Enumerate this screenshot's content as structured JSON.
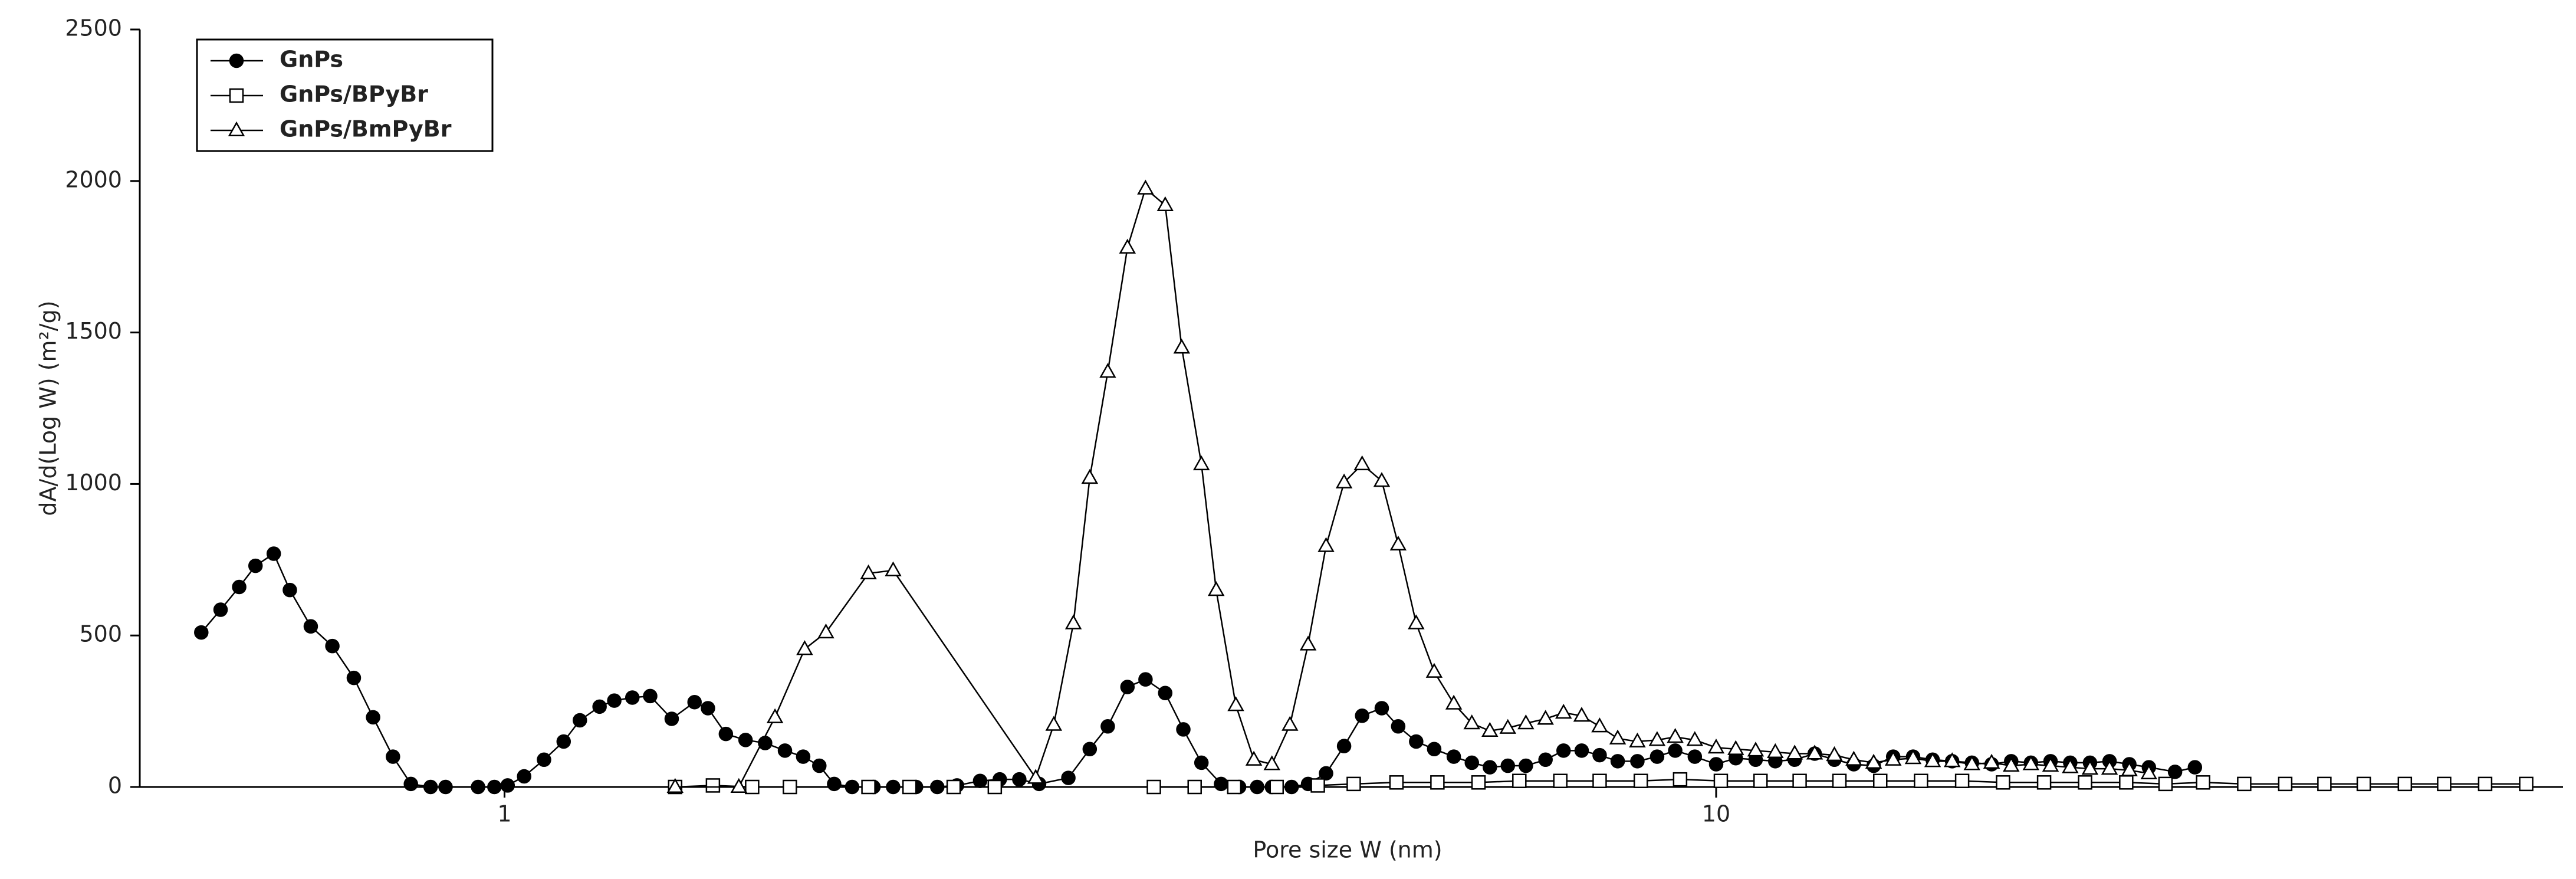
{
  "chart_data": {
    "type": "line",
    "xlabel": "Pore size W (nm)",
    "ylabel": "dA/d(Log W) (m²/g)",
    "xscale": "log",
    "xlim": [
      0.5,
      50
    ],
    "xticks": [
      1,
      10
    ],
    "ylim": [
      0,
      2500
    ],
    "yticks": [
      0,
      500,
      1000,
      1500,
      2000,
      2500
    ],
    "legend": "upper left",
    "series": [
      {
        "name": "GnPs",
        "color": "#000000",
        "marker": "circle-filled",
        "x": [
          0.562,
          0.583,
          0.604,
          0.623,
          0.645,
          0.665,
          0.692,
          0.721,
          0.751,
          0.779,
          0.809,
          0.837,
          0.869,
          0.894,
          0.951,
          0.981,
          1.006,
          1.038,
          1.078,
          1.119,
          1.154,
          1.198,
          1.232,
          1.275,
          1.319,
          1.374,
          1.435,
          1.472,
          1.523,
          1.581,
          1.641,
          1.704,
          1.764,
          1.819,
          1.871,
          1.936,
          2.016,
          2.093,
          2.186,
          2.276,
          2.363,
          2.469,
          2.563,
          2.66,
          2.762,
          2.92,
          3.041,
          3.147,
          3.267,
          3.381,
          3.51,
          3.633,
          3.76,
          3.903,
          4.039,
          4.18,
          4.299,
          4.463,
          4.605,
          4.765,
          4.931,
          5.103,
          5.297,
          5.465,
          5.655,
          5.852,
          6.074,
          6.286,
          6.505,
          6.731,
          6.966,
          7.231,
          7.483,
          7.745,
          8.014,
          8.294,
          8.61,
          8.939,
          9.252,
          9.603,
          10.0,
          10.38,
          10.78,
          11.19,
          11.61,
          12.06,
          12.52,
          12.99,
          13.49,
          14.0,
          14.54,
          15.09,
          15.66,
          16.26,
          16.88,
          17.52,
          18.19,
          18.88,
          19.6,
          20.35,
          21.12,
          21.93,
          22.76,
          23.92,
          24.84
        ],
        "values": [
          510,
          585,
          660,
          730,
          770,
          650,
          530,
          465,
          360,
          230,
          100,
          10,
          0,
          0,
          0,
          0,
          5,
          35,
          90,
          150,
          220,
          265,
          285,
          295,
          300,
          225,
          280,
          260,
          175,
          155,
          145,
          120,
          100,
          70,
          10,
          0,
          0,
          0,
          0,
          0,
          5,
          20,
          25,
          25,
          10,
          30,
          125,
          200,
          330,
          355,
          310,
          190,
          80,
          10,
          0,
          0,
          0,
          0,
          10,
          45,
          135,
          235,
          260,
          200,
          150,
          125,
          100,
          80,
          65,
          70,
          70,
          90,
          120,
          120,
          105,
          85,
          85,
          100,
          120,
          100,
          75,
          95,
          90,
          85,
          90,
          110,
          90,
          75,
          70,
          100,
          100,
          90,
          85,
          80,
          75,
          85,
          80,
          85,
          80,
          80,
          85,
          75,
          65,
          50,
          65
        ]
      },
      {
        "name": "GnPs/BPyBr",
        "color": "#000000",
        "marker": "square-open",
        "x": [
          1.383,
          1.486,
          1.601,
          1.72,
          1.997,
          2.159,
          2.348,
          2.539,
          3.435,
          3.712,
          4.002,
          4.338,
          4.691,
          5.022,
          5.447,
          5.888,
          6.366,
          6.88,
          7.437,
          8.014,
          8.666,
          9.338,
          10.09,
          10.88,
          11.72,
          12.64,
          13.66,
          14.76,
          15.96,
          17.25,
          18.65,
          20.16,
          21.8,
          23.49,
          25.23,
          27.28,
          29.49,
          31.77,
          34.24,
          37.02,
          39.89,
          43.12,
          46.62
        ],
        "values": [
          0,
          5,
          0,
          0,
          0,
          0,
          0,
          0,
          0,
          0,
          0,
          0,
          5,
          10,
          15,
          15,
          15,
          20,
          20,
          20,
          20,
          25,
          20,
          20,
          20,
          20,
          20,
          20,
          20,
          15,
          15,
          15,
          15,
          10,
          15,
          10,
          10,
          10,
          10,
          10,
          10,
          10,
          10
        ]
      },
      {
        "name": "GnPs/BmPyBr",
        "color": "#000000",
        "marker": "triangle-open",
        "x": [
          1.383,
          1.561,
          1.672,
          1.769,
          1.842,
          1.997,
          2.093,
          2.744,
          2.84,
          2.948,
          3.041,
          3.147,
          3.267,
          3.381,
          3.51,
          3.622,
          3.76,
          3.867,
          4.014,
          4.154,
          4.299,
          4.449,
          4.605,
          4.765,
          4.931,
          5.103,
          5.297,
          5.465,
          5.655,
          5.852,
          6.074,
          6.286,
          6.505,
          6.731,
          6.966,
          7.231,
          7.483,
          7.745,
          8.014,
          8.294,
          8.61,
          8.939,
          9.252,
          9.603,
          10.0,
          10.38,
          10.78,
          11.19,
          11.61,
          12.06,
          12.52,
          12.99,
          13.49,
          14.0,
          14.54,
          15.09,
          15.66,
          16.26,
          16.88,
          17.52,
          18.19,
          18.88,
          19.6,
          20.35,
          21.12,
          21.93,
          22.76
        ],
        "values": [
          0,
          0,
          230,
          455,
          510,
          705,
          715,
          30,
          205,
          540,
          1020,
          1370,
          1780,
          1975,
          1920,
          1450,
          1065,
          650,
          270,
          90,
          75,
          205,
          470,
          795,
          1005,
          1065,
          1010,
          800,
          540,
          380,
          275,
          210,
          185,
          195,
          210,
          225,
          245,
          235,
          200,
          160,
          150,
          155,
          165,
          155,
          130,
          125,
          120,
          115,
          110,
          110,
          105,
          90,
          80,
          90,
          95,
          85,
          85,
          75,
          80,
          70,
          75,
          70,
          65,
          60,
          60,
          55,
          45
        ]
      }
    ]
  }
}
